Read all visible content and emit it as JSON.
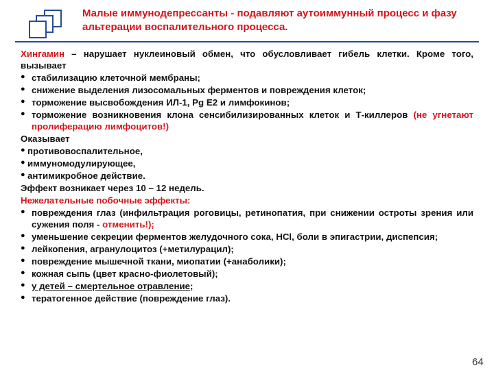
{
  "colors": {
    "accent_blue": "#244b9c",
    "accent_red": "#d7131a",
    "text": "#111111",
    "bg": "#ffffff"
  },
  "title": "Малые иммунодепрессанты - подавляют аутоиммунный процесс и фазу альтерации воспалительного процесса.",
  "intro_drug": "Хингамин",
  "intro_rest": " – нарушает нуклеиновый обмен, что обусловливает гибель клетки. Кроме того, вызывает",
  "b1": "стабилизацию клеточной мембраны;",
  "b2": "снижение выделения лизосомальных ферментов и повреждения клеток;",
  "b3": "торможение высвобождения ИЛ-1,  Pg E2 и лимфокинов;",
  "b4_lead": "торможение возникновения клона сенсибилизированных клеток и Т-киллеров ",
  "b4_red": "(не угнетают пролиферацию лимфоцитов!)",
  "okazyvaet": "Оказывает",
  "e1": "противовоспалительное,",
  "e2": "иммуномодулирующее,",
  "e3": "антимикробное действие.",
  "effect_line": "Эффект возникает через 10 – 12 недель.",
  "side_title": "Нежелательные побочные эффекты:",
  "s1_lead": "повреждения глаз (инфильтрация роговицы, ретинопатия, при снижении остроты зрения  или сужения поля - ",
  "s1_red": "отменить!);",
  "s2": "уменьшение секреции ферментов желудочного сока, HCl, боли в эпигастрии, диспепсия;",
  "s3": "лейкопения, агранулоцитоз (+метилурацил);",
  "s4": "повреждение мышечной ткани, миопатии (+анаболики);",
  "s5": "кожная сыпь (цвет красно-фиолетовый);",
  "s6": "у детей – смертельное отравление;",
  "s7": "тератогенное действие (повреждение глаз).",
  "page_number": "64"
}
